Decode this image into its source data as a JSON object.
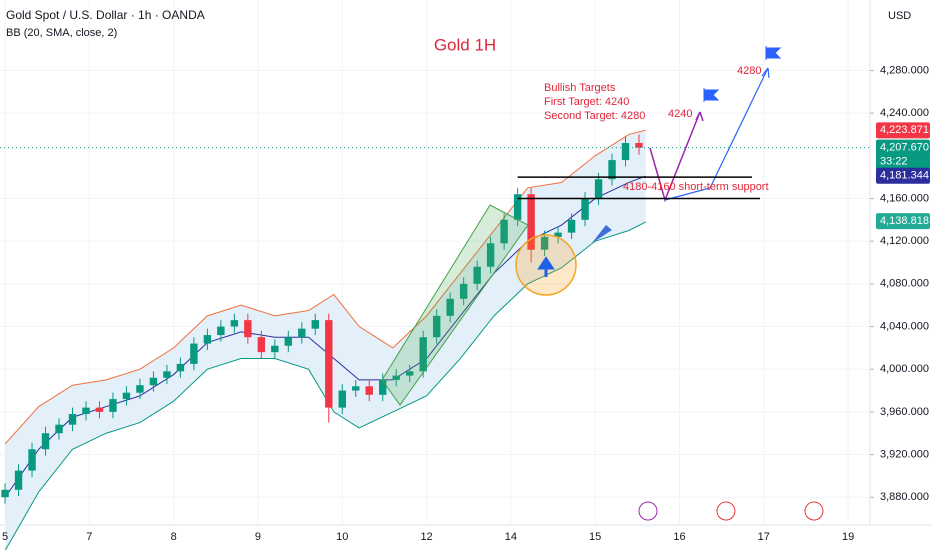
{
  "chart_data": {
    "type": "candlestick",
    "title": "Gold 1H",
    "symbol": "Gold Spot / U.S. Dollar · 1h · OANDA",
    "indicator": "BB (20, SMA, close, 2)",
    "currency": "USD",
    "x": [
      0,
      0.16,
      0.32,
      0.48,
      0.64,
      0.8,
      0.96,
      1.12,
      1.28,
      1.44,
      1.6,
      1.76,
      1.92,
      2.08,
      2.24,
      2.4,
      2.56,
      2.72,
      2.88,
      3.04,
      3.2,
      3.36,
      3.52,
      3.68,
      3.84,
      4.0,
      4.16,
      4.32,
      4.48,
      4.64,
      4.8,
      4.96,
      5.12,
      5.28,
      5.44,
      5.6,
      5.76,
      5.92,
      6.08,
      6.24,
      6.4,
      6.56,
      6.72,
      6.88,
      7.04,
      7.2,
      7.36,
      7.52
    ],
    "open": [
      3880,
      3887,
      3905,
      3925,
      3940,
      3948,
      3958,
      3964,
      3960,
      3972,
      3978,
      3985,
      3992,
      3998,
      4005,
      4024,
      4032,
      4040,
      4046,
      4030,
      4016,
      4022,
      4030,
      4038,
      4046,
      3964,
      3980,
      3984,
      3976,
      3990,
      3994,
      3998,
      4030,
      4050,
      4066,
      4080,
      4096,
      4118,
      4140,
      4164,
      4112,
      4124,
      4128,
      4140,
      4160,
      4178,
      4196,
      4212
    ],
    "high": [
      3893,
      3911,
      3931,
      3946,
      3954,
      3964,
      3970,
      3970,
      3978,
      3984,
      3991,
      3998,
      4004,
      4011,
      4030,
      4038,
      4046,
      4052,
      4052,
      4036,
      4028,
      4036,
      4044,
      4052,
      4052,
      3986,
      3990,
      3990,
      3996,
      4000,
      4004,
      4036,
      4056,
      4072,
      4086,
      4102,
      4124,
      4146,
      4170,
      4170,
      4130,
      4134,
      4146,
      4166,
      4184,
      4202,
      4218,
      4220
    ],
    "low": [
      3874,
      3881,
      3899,
      3919,
      3934,
      3942,
      3952,
      3954,
      3954,
      3966,
      3972,
      3979,
      3986,
      3992,
      3999,
      4018,
      4026,
      4034,
      4024,
      4010,
      4010,
      4016,
      4024,
      4032,
      3950,
      3958,
      3974,
      3970,
      3970,
      3984,
      3988,
      3992,
      4024,
      4044,
      4060,
      4074,
      4090,
      4112,
      4134,
      4100,
      4106,
      4118,
      4122,
      4134,
      4154,
      4172,
      4190,
      4201
    ],
    "close": [
      3887,
      3905,
      3925,
      3940,
      3948,
      3958,
      3964,
      3960,
      3972,
      3978,
      3985,
      3992,
      3998,
      4005,
      4024,
      4032,
      4040,
      4046,
      4030,
      4016,
      4022,
      4030,
      4038,
      4046,
      3964,
      3980,
      3984,
      3976,
      3990,
      3994,
      3998,
      4030,
      4050,
      4066,
      4080,
      4096,
      4118,
      4140,
      4164,
      4112,
      4124,
      4128,
      4140,
      4160,
      4178,
      4196,
      4212,
      4207.67
    ],
    "up_color": "#089981",
    "down_color": "#f23645",
    "bands": {
      "x": [
        0,
        0.4,
        0.8,
        1.2,
        1.6,
        2.0,
        2.4,
        2.8,
        3.2,
        3.6,
        3.9,
        4.2,
        4.6,
        5.0,
        5.4,
        5.8,
        6.2,
        6.6,
        7.0,
        7.4,
        7.6
      ],
      "upper": [
        3930,
        3965,
        3985,
        3990,
        4000,
        4020,
        4050,
        4060,
        4050,
        4055,
        4070,
        4040,
        4020,
        4050,
        4090,
        4130,
        4170,
        4175,
        4200,
        4220,
        4224
      ],
      "middle": [
        3880,
        3925,
        3955,
        3965,
        3975,
        3995,
        4025,
        4035,
        4030,
        4030,
        4010,
        3990,
        3990,
        4010,
        4050,
        4090,
        4120,
        4135,
        4160,
        4175,
        4181
      ],
      "lower": [
        3830,
        3885,
        3925,
        3940,
        3950,
        3970,
        4000,
        4010,
        4010,
        4000,
        3960,
        3945,
        3960,
        3975,
        4010,
        4050,
        4080,
        4095,
        4120,
        4130,
        4138
      ],
      "upper_color": "#f0703a",
      "middle_color": "#2b2f9e",
      "lower_color": "#089981",
      "fill": "#e3f0fa"
    },
    "xlim": [
      -0.06,
      10.26
    ],
    "ylim": [
      3854,
      4346
    ],
    "xticks": [
      {
        "value": 0,
        "label": "5"
      },
      {
        "value": 1,
        "label": "7"
      },
      {
        "value": 2,
        "label": "8"
      },
      {
        "value": 3,
        "label": "9"
      },
      {
        "value": 4,
        "label": "10"
      },
      {
        "value": 5,
        "label": "12"
      },
      {
        "value": 6,
        "label": "14"
      },
      {
        "value": 7,
        "label": "15"
      },
      {
        "value": 8,
        "label": "16"
      },
      {
        "value": 9,
        "label": "17"
      },
      {
        "value": 10,
        "label": "19"
      }
    ],
    "yticks": [
      {
        "value": 4280,
        "label": "4,280.000"
      },
      {
        "value": 4240,
        "label": "4,240.000"
      },
      {
        "value": 4160,
        "label": "4,160.000"
      },
      {
        "value": 4120,
        "label": "4,120.000"
      },
      {
        "value": 4080,
        "label": "4,080.000"
      },
      {
        "value": 4040,
        "label": "4,040.000"
      },
      {
        "value": 4000,
        "label": "4,000.000"
      },
      {
        "value": 3960,
        "label": "3,960.000"
      },
      {
        "value": 3920,
        "label": "3,920.000"
      },
      {
        "value": 3880,
        "label": "3,880.000"
      }
    ],
    "price_labels": [
      {
        "value": 4223.871,
        "label": "4,223.871",
        "color": "#f23645"
      },
      {
        "value": 4207.67,
        "label": "4,207.670",
        "color": "#089981",
        "countdown": "33:22"
      },
      {
        "value": 4181.344,
        "label": "4,181.344",
        "color": "#2b2f9e"
      },
      {
        "value": 4138.818,
        "label": "4,138.818",
        "color": "#22ab94"
      }
    ],
    "levels": [
      4180,
      4160
    ],
    "annotations": {
      "targets_heading": "Bullish Targets",
      "first_target": "First Target: 4240",
      "second_target": "Second Target: 4280",
      "target_1": "4240",
      "target_2": "4280",
      "support": "4180-4160 short-term support"
    }
  }
}
